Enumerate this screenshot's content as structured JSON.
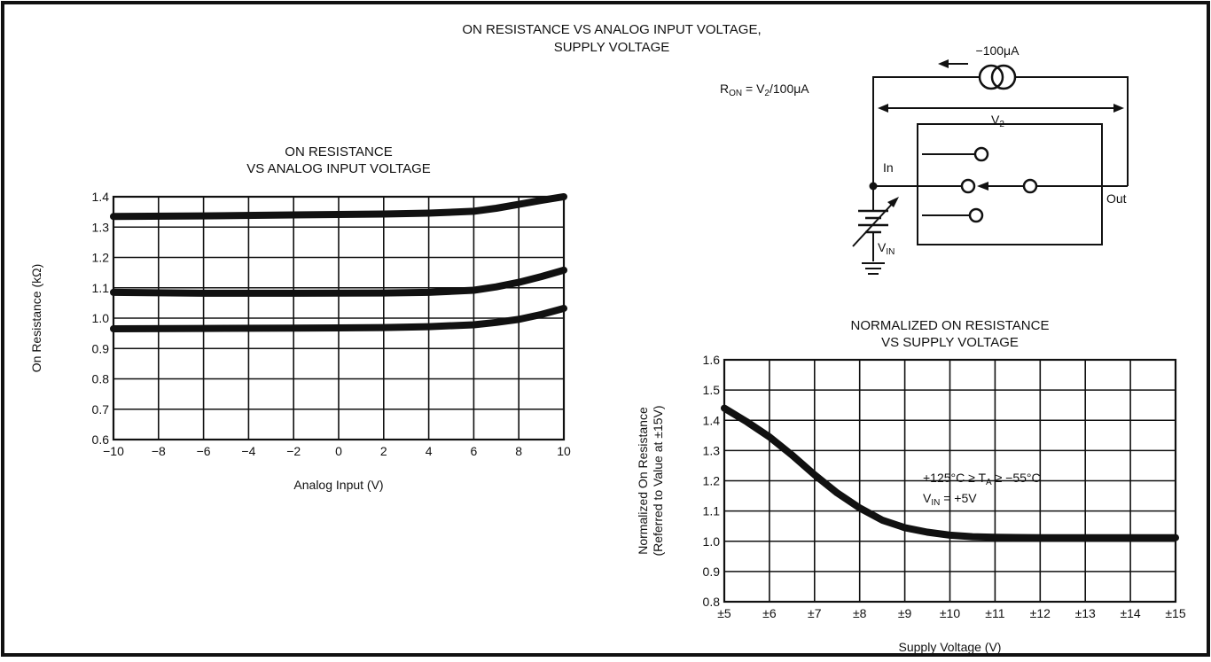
{
  "figure_title": [
    "ON RESISTANCE VS ANALOG INPUT VOLTAGE,",
    "SUPPLY VOLTAGE"
  ],
  "circuit": {
    "formula": "R",
    "formula_sub": "ON",
    "formula_rest": " = V",
    "formula_sub2": "2",
    "formula_tail": "/100μA",
    "current_label": "−100μA",
    "v2_label": "V",
    "v2_sub": "2",
    "in_label": "In",
    "out_label": "Out",
    "vin_label": "V",
    "vin_sub": "IN"
  },
  "chart_data": [
    {
      "type": "line",
      "title": [
        "ON RESISTANCE",
        "VS ANALOG INPUT VOLTAGE"
      ],
      "xlabel": "Analog Input (V)",
      "ylabel": "On Resistance (kΩ)",
      "xlim": [
        -10,
        10
      ],
      "ylim": [
        0.6,
        1.4
      ],
      "x_ticks": [
        -10,
        -8,
        -6,
        -4,
        -2,
        0,
        2,
        4,
        6,
        8,
        10
      ],
      "x_tick_labels": [
        "−10",
        "−8",
        "−6",
        "−4",
        "−2",
        "0",
        "2",
        "4",
        "6",
        "8",
        "10"
      ],
      "y_ticks": [
        0.6,
        0.7,
        0.8,
        0.9,
        1.0,
        1.1,
        1.2,
        1.3,
        1.4
      ],
      "y_tick_labels": [
        "0.6",
        "0.7",
        "0.8",
        "0.9",
        "1.0",
        "1.1",
        "1.2",
        "1.3",
        "1.4"
      ],
      "grid": true,
      "series": [
        {
          "x": [
            -10,
            -6,
            -2,
            2,
            4,
            6,
            7,
            8,
            9,
            10
          ],
          "y": [
            1.335,
            1.337,
            1.34,
            1.343,
            1.346,
            1.352,
            1.362,
            1.375,
            1.388,
            1.4
          ]
        },
        {
          "x": [
            -10,
            -6,
            -2,
            2,
            4,
            6,
            7,
            8,
            9,
            10
          ],
          "y": [
            1.085,
            1.082,
            1.082,
            1.083,
            1.085,
            1.092,
            1.103,
            1.118,
            1.137,
            1.158
          ]
        },
        {
          "x": [
            -10,
            -6,
            -2,
            2,
            4,
            6,
            7,
            8,
            9,
            10
          ],
          "y": [
            0.965,
            0.966,
            0.967,
            0.969,
            0.972,
            0.978,
            0.986,
            0.996,
            1.012,
            1.032
          ]
        }
      ]
    },
    {
      "type": "line",
      "title": [
        "NORMALIZED ON RESISTANCE",
        "VS SUPPLY VOLTAGE"
      ],
      "xlabel": "Supply Voltage (V)",
      "ylabel": [
        "Normalized On Resistance",
        "(Referred to Value at ±15V)"
      ],
      "xlim": [
        5,
        15
      ],
      "ylim": [
        0.8,
        1.6
      ],
      "x_ticks": [
        5,
        6,
        7,
        8,
        9,
        10,
        11,
        12,
        13,
        14,
        15
      ],
      "x_tick_labels": [
        "±5",
        "±6",
        "±7",
        "±8",
        "±9",
        "±10",
        "±11",
        "±12",
        "±13",
        "±14",
        "±15"
      ],
      "y_ticks": [
        0.8,
        0.9,
        1.0,
        1.1,
        1.2,
        1.3,
        1.4,
        1.5,
        1.6
      ],
      "y_tick_labels": [
        "0.8",
        "0.9",
        "1.0",
        "1.1",
        "1.2",
        "1.3",
        "1.4",
        "1.5",
        "1.6"
      ],
      "grid": true,
      "annotation": [
        "+125°C ≥ T",
        "A",
        " ≥ −55°C"
      ],
      "annotation2": [
        "V",
        "IN",
        " = +5V"
      ],
      "series": [
        {
          "x": [
            5,
            5.5,
            6,
            6.5,
            7,
            7.5,
            8,
            8.5,
            9,
            9.5,
            10,
            10.5,
            11,
            12,
            13,
            14,
            15
          ],
          "y": [
            1.44,
            1.395,
            1.345,
            1.285,
            1.22,
            1.16,
            1.11,
            1.07,
            1.045,
            1.03,
            1.02,
            1.015,
            1.013,
            1.012,
            1.012,
            1.012,
            1.012
          ]
        }
      ]
    }
  ]
}
